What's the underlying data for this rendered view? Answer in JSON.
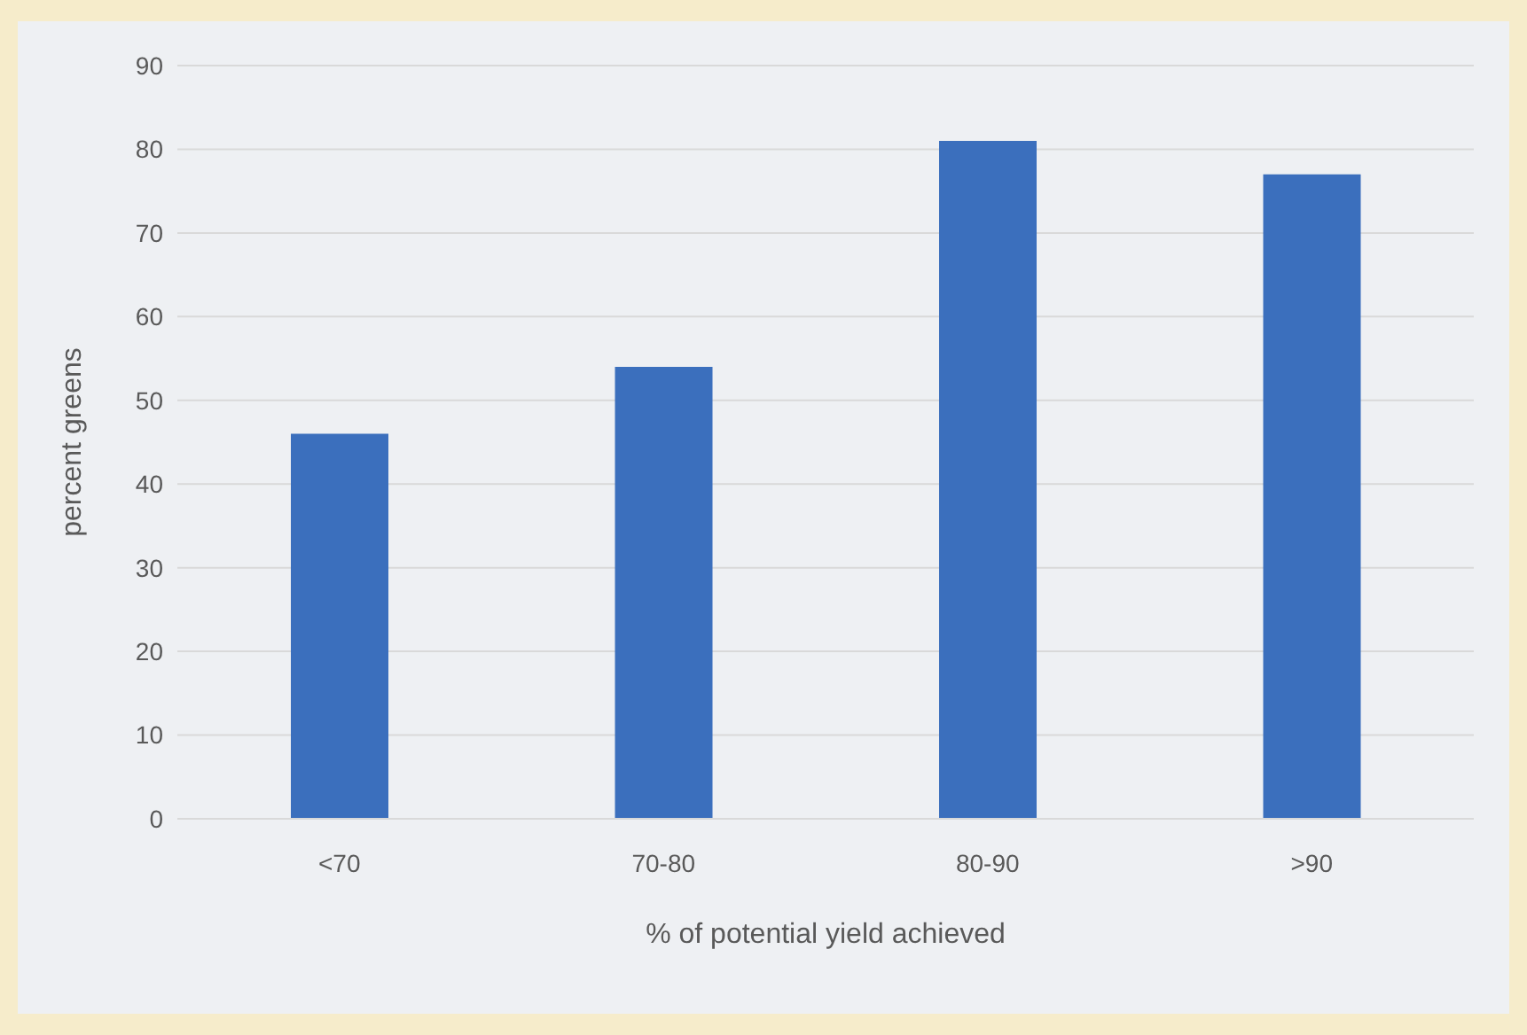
{
  "chart_data": {
    "type": "bar",
    "xlabel": "% of potential yield achieved",
    "ylabel": "percent greens",
    "categories": [
      "<70",
      "70-80",
      "80-90",
      ">90"
    ],
    "values": [
      46,
      54,
      81,
      77
    ],
    "color": "#3b6fbd",
    "ylim": [
      0,
      90
    ],
    "yticks": [
      0,
      10,
      20,
      30,
      40,
      50,
      60,
      70,
      80,
      90
    ],
    "grid": "y"
  }
}
